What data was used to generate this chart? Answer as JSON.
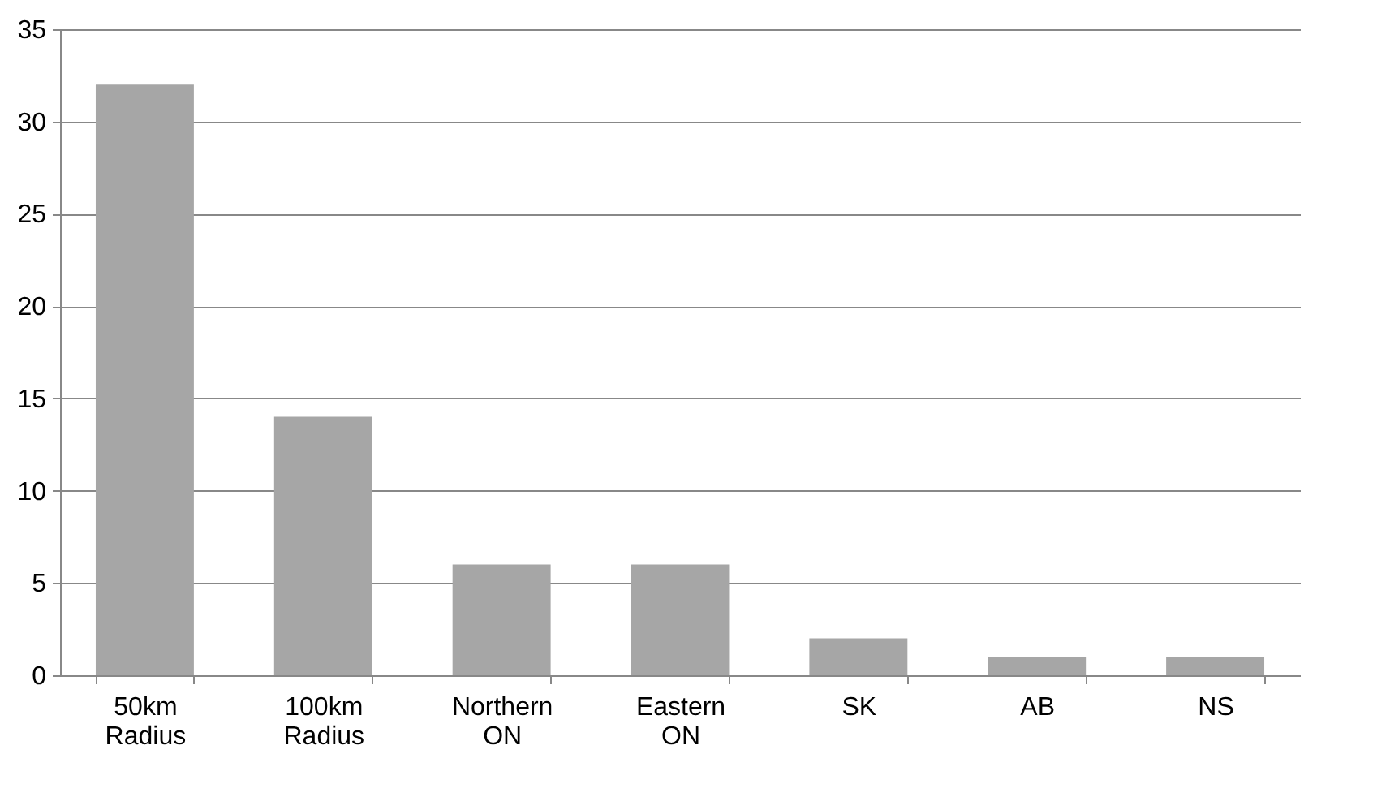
{
  "chart_data": {
    "type": "bar",
    "categories": [
      "50km Radius",
      "100km Radius",
      "Northern ON",
      "Eastern ON",
      "SK",
      "AB",
      "NS"
    ],
    "values": [
      32,
      14,
      6,
      6,
      2,
      1,
      1
    ],
    "color": "#a6a6a6",
    "ylim": [
      0,
      35
    ],
    "yticks": [
      0,
      5,
      10,
      15,
      20,
      25,
      30,
      35
    ],
    "grid": "y"
  }
}
